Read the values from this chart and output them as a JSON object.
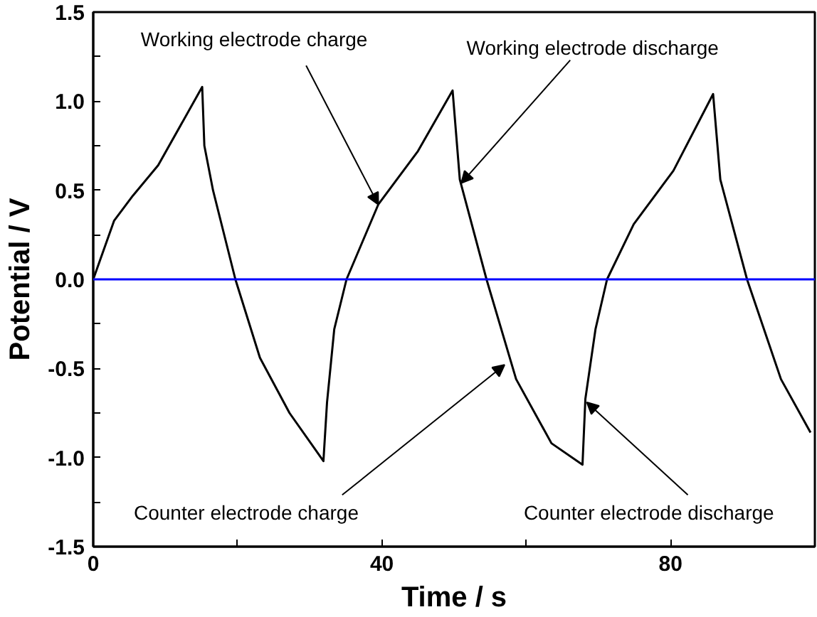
{
  "chart_data": {
    "type": "line",
    "xlabel": "Time / s",
    "ylabel": "Potential / V",
    "x": [
      0,
      2.9,
      5.5,
      9,
      15.1,
      15.4,
      16.6,
      19.7,
      23.1,
      27.2,
      31.9,
      32.4,
      33.4,
      35.1,
      39.5,
      45,
      49.8,
      50.8,
      54.5,
      58.6,
      63.5,
      67.8,
      68.2,
      69.6,
      71.2,
      74.9,
      80.4,
      85.9,
      86.9,
      90.6,
      95.3,
      99.4
    ],
    "series": [
      {
        "color": "#000000",
        "values": [
          0,
          0.33,
          0.47,
          0.64,
          1.08,
          0.75,
          0.5,
          0,
          -0.44,
          -0.75,
          -1.02,
          -0.69,
          -0.28,
          0,
          0.42,
          0.72,
          1.06,
          0.56,
          0,
          -0.56,
          -0.92,
          -1.04,
          -0.67,
          -0.28,
          0,
          0.31,
          0.61,
          1.04,
          0.56,
          0,
          -0.56,
          -0.86
        ]
      }
    ],
    "xlim": [
      0,
      100
    ],
    "ylim": [
      -1.5,
      1.5
    ],
    "xticks": [
      0,
      {
        "value": 20,
        "label": null
      },
      40,
      {
        "value": 60,
        "label": null
      },
      80,
      {
        "value": 100,
        "label": null
      }
    ],
    "yticks": [
      {
        "value": -1.5,
        "label": "-1.5"
      },
      {
        "value": -1.25,
        "label": null
      },
      {
        "value": -1.0,
        "label": "-1.0"
      },
      {
        "value": -0.75,
        "label": null
      },
      {
        "value": -0.5,
        "label": "-0.5"
      },
      {
        "value": -0.25,
        "label": null
      },
      {
        "value": 0,
        "label": "0.0"
      },
      {
        "value": 0.25,
        "label": null
      },
      {
        "value": 0.5,
        "label": "0.5"
      },
      {
        "value": 0.75,
        "label": null
      },
      {
        "value": 1.0,
        "label": "1.0"
      },
      {
        "value": 1.25,
        "label": null
      },
      {
        "value": 1.5,
        "label": "1.5"
      }
    ],
    "ref_lines": [
      {
        "axis": "y",
        "value": 0,
        "color": "#0000ff"
      }
    ],
    "annotations": [
      {
        "text": "Working electrode charge",
        "x": 39.5,
        "y": 0.42
      },
      {
        "text": "Working electrode discharge",
        "x": 51.0,
        "y": 0.54
      },
      {
        "text": "Counter electrode charge",
        "x": 57,
        "y": -0.48
      },
      {
        "text": "Counter electrode discharge",
        "x": 68.4,
        "y": -0.69
      }
    ],
    "grid": false,
    "marker": "none",
    "line_style": "solid"
  }
}
